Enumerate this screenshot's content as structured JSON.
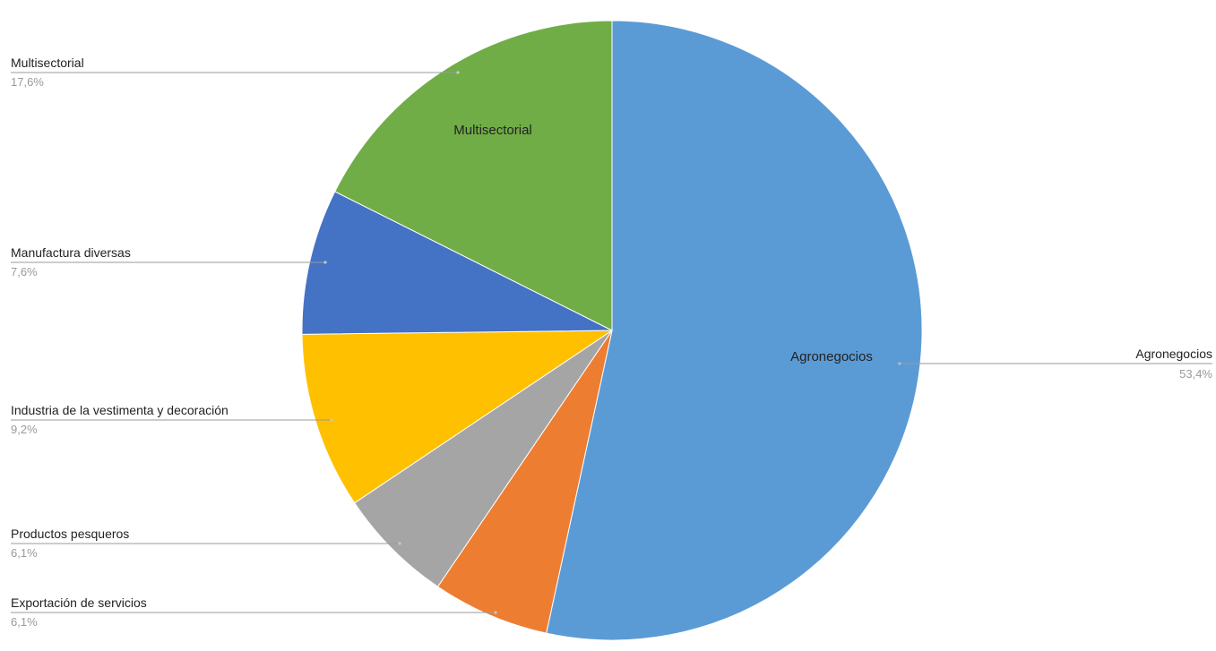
{
  "chart_data": {
    "type": "pie",
    "title": "",
    "start_angle_deg": 0,
    "direction": "clockwise",
    "slices": [
      {
        "name": "Agronegocios",
        "value": 53.4,
        "percent_label": "53,4%",
        "color": "#5B9BD5",
        "inner_label": "Agronegocios",
        "label_side": "right"
      },
      {
        "name": "Exportación de servicios",
        "value": 6.1,
        "percent_label": "6,1%",
        "color": "#ED7D31",
        "inner_label": "",
        "label_side": "left"
      },
      {
        "name": "Productos pesqueros",
        "value": 6.1,
        "percent_label": "6,1%",
        "color": "#A5A5A5",
        "inner_label": "",
        "label_side": "left"
      },
      {
        "name": "Industria de la vestimenta y decoración",
        "value": 9.2,
        "percent_label": "9,2%",
        "color": "#FFC000",
        "inner_label": "",
        "label_side": "left"
      },
      {
        "name": "Manufactura diversas",
        "value": 7.6,
        "percent_label": "7,6%",
        "color": "#4472C4",
        "inner_label": "",
        "label_side": "left"
      },
      {
        "name": "Multisectorial",
        "value": 17.6,
        "percent_label": "17,6%",
        "color": "#70AD47",
        "inner_label": "Multisectorial",
        "label_side": "left"
      }
    ]
  }
}
